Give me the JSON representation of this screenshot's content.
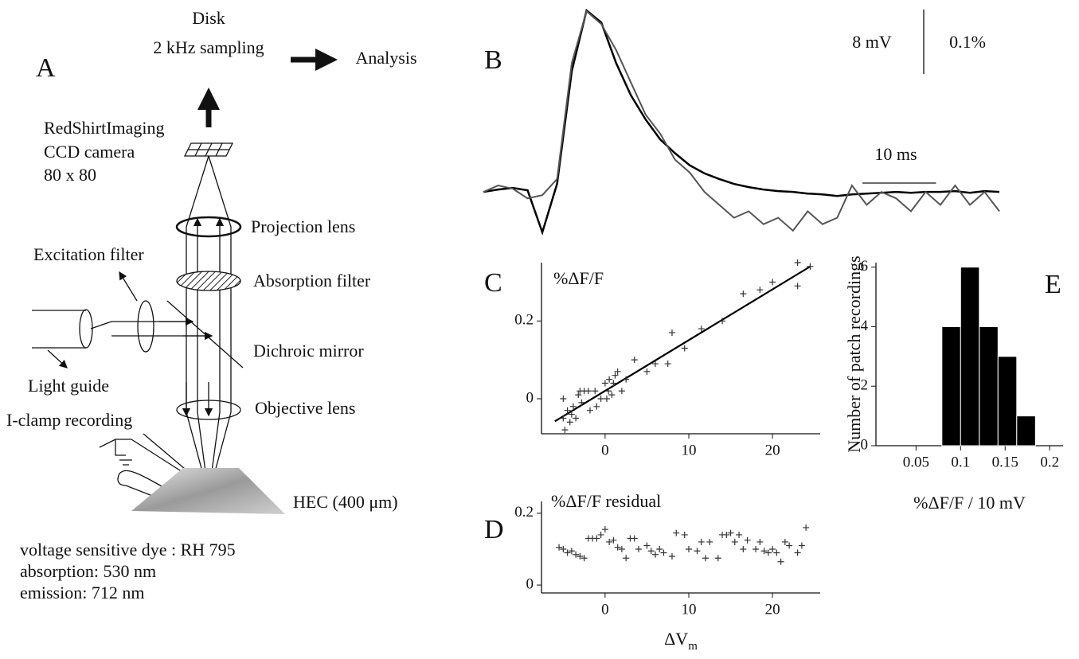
{
  "diagram": {
    "panel": "A",
    "disk": "Disk",
    "sampling": "2 kHz sampling",
    "analysis": "Analysis",
    "camera": [
      "RedShirtImaging",
      "CCD camera",
      "80 x 80"
    ],
    "projection_lens": "Projection lens",
    "excitation_filter": "Excitation filter",
    "absorption_filter": "Absorption filter",
    "dichroic_mirror": "Dichroic mirror",
    "light_guide": "Light guide",
    "objective_lens": "Objective lens",
    "iclamp": "I-clamp recording",
    "specimen": "HEC (400 μm)",
    "notes": [
      "voltage sensitive dye : RH 795",
      "absorption: 530 nm",
      "emission: 712 nm"
    ]
  },
  "chart_data": [
    {
      "type": "line",
      "panel": "B",
      "x": [
        0,
        2,
        4,
        6,
        8,
        10,
        12,
        14,
        16,
        18,
        20,
        22,
        24,
        26,
        28,
        30,
        32,
        34,
        36,
        38,
        40,
        42,
        44,
        46,
        48,
        50,
        52,
        54,
        56,
        58,
        60,
        62,
        64,
        66,
        68,
        70
      ],
      "xlim": [
        0,
        70
      ],
      "ylim": [
        -6,
        23
      ],
      "y2lim": [
        -0.075,
        0.2875
      ],
      "series": [
        {
          "color": "#000000",
          "values": [
            0,
            0.3,
            0.5,
            0.2,
            -5,
            1,
            15,
            22.5,
            21,
            16,
            12,
            9,
            6.5,
            4.8,
            3.3,
            2.3,
            1.6,
            1,
            0.6,
            0.3,
            0.1,
            0,
            -0.2,
            -0.3,
            -0.5,
            -0.3,
            -0.2,
            -0.1,
            0,
            -0.1,
            0,
            0,
            0.1,
            -0.1,
            0.1,
            0
          ]
        },
        {
          "color": "#555555",
          "axis": "y2",
          "values": [
            0,
            0.01,
            0.005,
            -0.01,
            -0.005,
            0.02,
            0.2,
            0.28,
            0.26,
            0.22,
            0.17,
            0.12,
            0.09,
            0.05,
            0.03,
            0,
            -0.02,
            -0.04,
            -0.03,
            -0.05,
            -0.04,
            -0.06,
            -0.03,
            -0.05,
            -0.04,
            0.01,
            -0.02,
            0,
            -0.01,
            -0.03,
            0,
            -0.02,
            0.01,
            -0.02,
            0,
            -0.03
          ]
        }
      ],
      "scalebar": {
        "x": 10,
        "x_label": "10 ms",
        "y": 8,
        "y_label": "8 mV",
        "y2": 0.1,
        "y2_label": "0.1%"
      }
    },
    {
      "type": "scatter",
      "panel": "C",
      "title": "%ΔF/F",
      "x": [
        -5,
        -5,
        -4.8,
        -4.5,
        -4.2,
        -4,
        -3.8,
        -3.5,
        -3.2,
        -3,
        -2.8,
        -2.5,
        -2,
        -1.8,
        -1.2,
        -1,
        -0.5,
        0,
        0.2,
        0.4,
        0.5,
        0.8,
        1,
        1.2,
        1.5,
        2,
        2.5,
        3.5,
        5,
        6,
        7.5,
        8,
        9.5,
        11.5,
        14,
        16.5,
        18.5,
        20,
        23,
        23,
        24.5
      ],
      "values": [
        0,
        -0.05,
        -0.08,
        -0.03,
        -0.06,
        -0.04,
        -0.02,
        -0.05,
        0.01,
        0.02,
        -0.01,
        0.02,
        0.02,
        -0.03,
        0.02,
        -0.02,
        0,
        0.04,
        0,
        0.02,
        0.05,
        0.01,
        0.04,
        0.06,
        0.07,
        0.02,
        0.05,
        0.1,
        0.07,
        0.09,
        0.09,
        0.17,
        0.13,
        0.18,
        0.2,
        0.27,
        0.28,
        0.3,
        0.29,
        0.35,
        0.34
      ],
      "fit": {
        "x": [
          -6,
          24.5
        ],
        "values": [
          -0.058,
          0.34
        ]
      },
      "xlim": [
        -7.6,
        25.7
      ],
      "ylim": [
        -0.09,
        0.35
      ],
      "xticks": [
        0,
        10,
        20
      ],
      "yticks": [
        0,
        0.2
      ]
    },
    {
      "type": "scatter",
      "panel": "D",
      "title": "%ΔF/F residual",
      "x_label": "ΔV",
      "x_label_sub": "m",
      "x": [
        -5.5,
        -5,
        -4.5,
        -4,
        -3.5,
        -3,
        -2.5,
        -2,
        -1.5,
        -1,
        -0.5,
        0,
        0.5,
        1,
        1.5,
        2,
        2.5,
        3,
        3.5,
        4,
        5,
        5.5,
        6,
        6.5,
        7,
        8,
        8.5,
        9.5,
        10,
        11,
        11.5,
        12,
        12.5,
        13.5,
        14,
        14.5,
        15,
        15.5,
        16,
        16.5,
        17,
        18,
        18.5,
        19,
        19.5,
        20,
        20.5,
        21,
        21.5,
        22,
        23,
        23.5,
        24
      ],
      "values": [
        0.105,
        0.1,
        0.09,
        0.095,
        0.085,
        0.08,
        0.075,
        0.13,
        0.13,
        0.13,
        0.14,
        0.155,
        0.12,
        0.125,
        0.105,
        0.1,
        0.075,
        0.13,
        0.13,
        0.1,
        0.11,
        0.095,
        0.085,
        0.1,
        0.09,
        0.08,
        0.145,
        0.14,
        0.1,
        0.095,
        0.12,
        0.075,
        0.12,
        0.075,
        0.14,
        0.14,
        0.145,
        0.12,
        0.14,
        0.1,
        0.125,
        0.1,
        0.12,
        0.095,
        0.09,
        0.1,
        0.09,
        0.065,
        0.12,
        0.11,
        0.09,
        0.11,
        0.16
      ],
      "xlim": [
        -7.6,
        25.7
      ],
      "ylim": [
        -0.022,
        0.233
      ],
      "xticks": [
        0,
        10,
        20
      ],
      "yticks": [
        0,
        0.2
      ]
    },
    {
      "type": "histogram",
      "panel": "E",
      "x_label": "%ΔF/F / 10 mV",
      "y_label": "Number of patch recordings",
      "bins": [
        0.079,
        0.1,
        0.121,
        0.142,
        0.163,
        0.184
      ],
      "values": [
        4,
        6,
        4,
        3,
        1
      ],
      "color": "#000000",
      "xlim": [
        0.005,
        0.215
      ],
      "ylim": [
        0,
        6.15
      ],
      "xticks": [
        0.05,
        0.1,
        0.15,
        0.2
      ],
      "yticks": [
        0,
        2,
        4,
        6
      ]
    }
  ]
}
